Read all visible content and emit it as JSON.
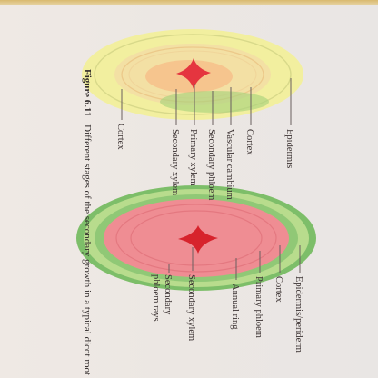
{
  "caption": {
    "number": "Figure 6.11",
    "text": "Different stages of the secondary growth in a typical dicot root"
  },
  "diagram_1": {
    "labels": {
      "epidermis": "Epidermis",
      "cortex_right": "Cortex",
      "vascular_cambium": "Vascular cambium",
      "secondary_phloem": "Secondary phloem",
      "primary_xylem": "Primary xylem",
      "secondary_xylem": "Secondary xylem",
      "cortex_left": "Cortex"
    }
  },
  "diagram_2": {
    "labels": {
      "epidermis_periderm": "Epidermis/periderm",
      "cortex": "Cortex",
      "primary_phloem": "Primary phloem",
      "annual_ring": "Annual ring",
      "secondary_xylem": "Secondary xylem",
      "secondary_phloem_rays": "Secondary phloem rays"
    }
  },
  "colors": {
    "diagram_1_outer": "#f1ef9e",
    "diagram_1_inner": "#f3d9a0",
    "diagram_1_center": "#e5353f",
    "diagram_2_outer": "#7fbf6b",
    "diagram_2_inner": "#ef8b92",
    "diagram_2_center": "#d7232c"
  }
}
